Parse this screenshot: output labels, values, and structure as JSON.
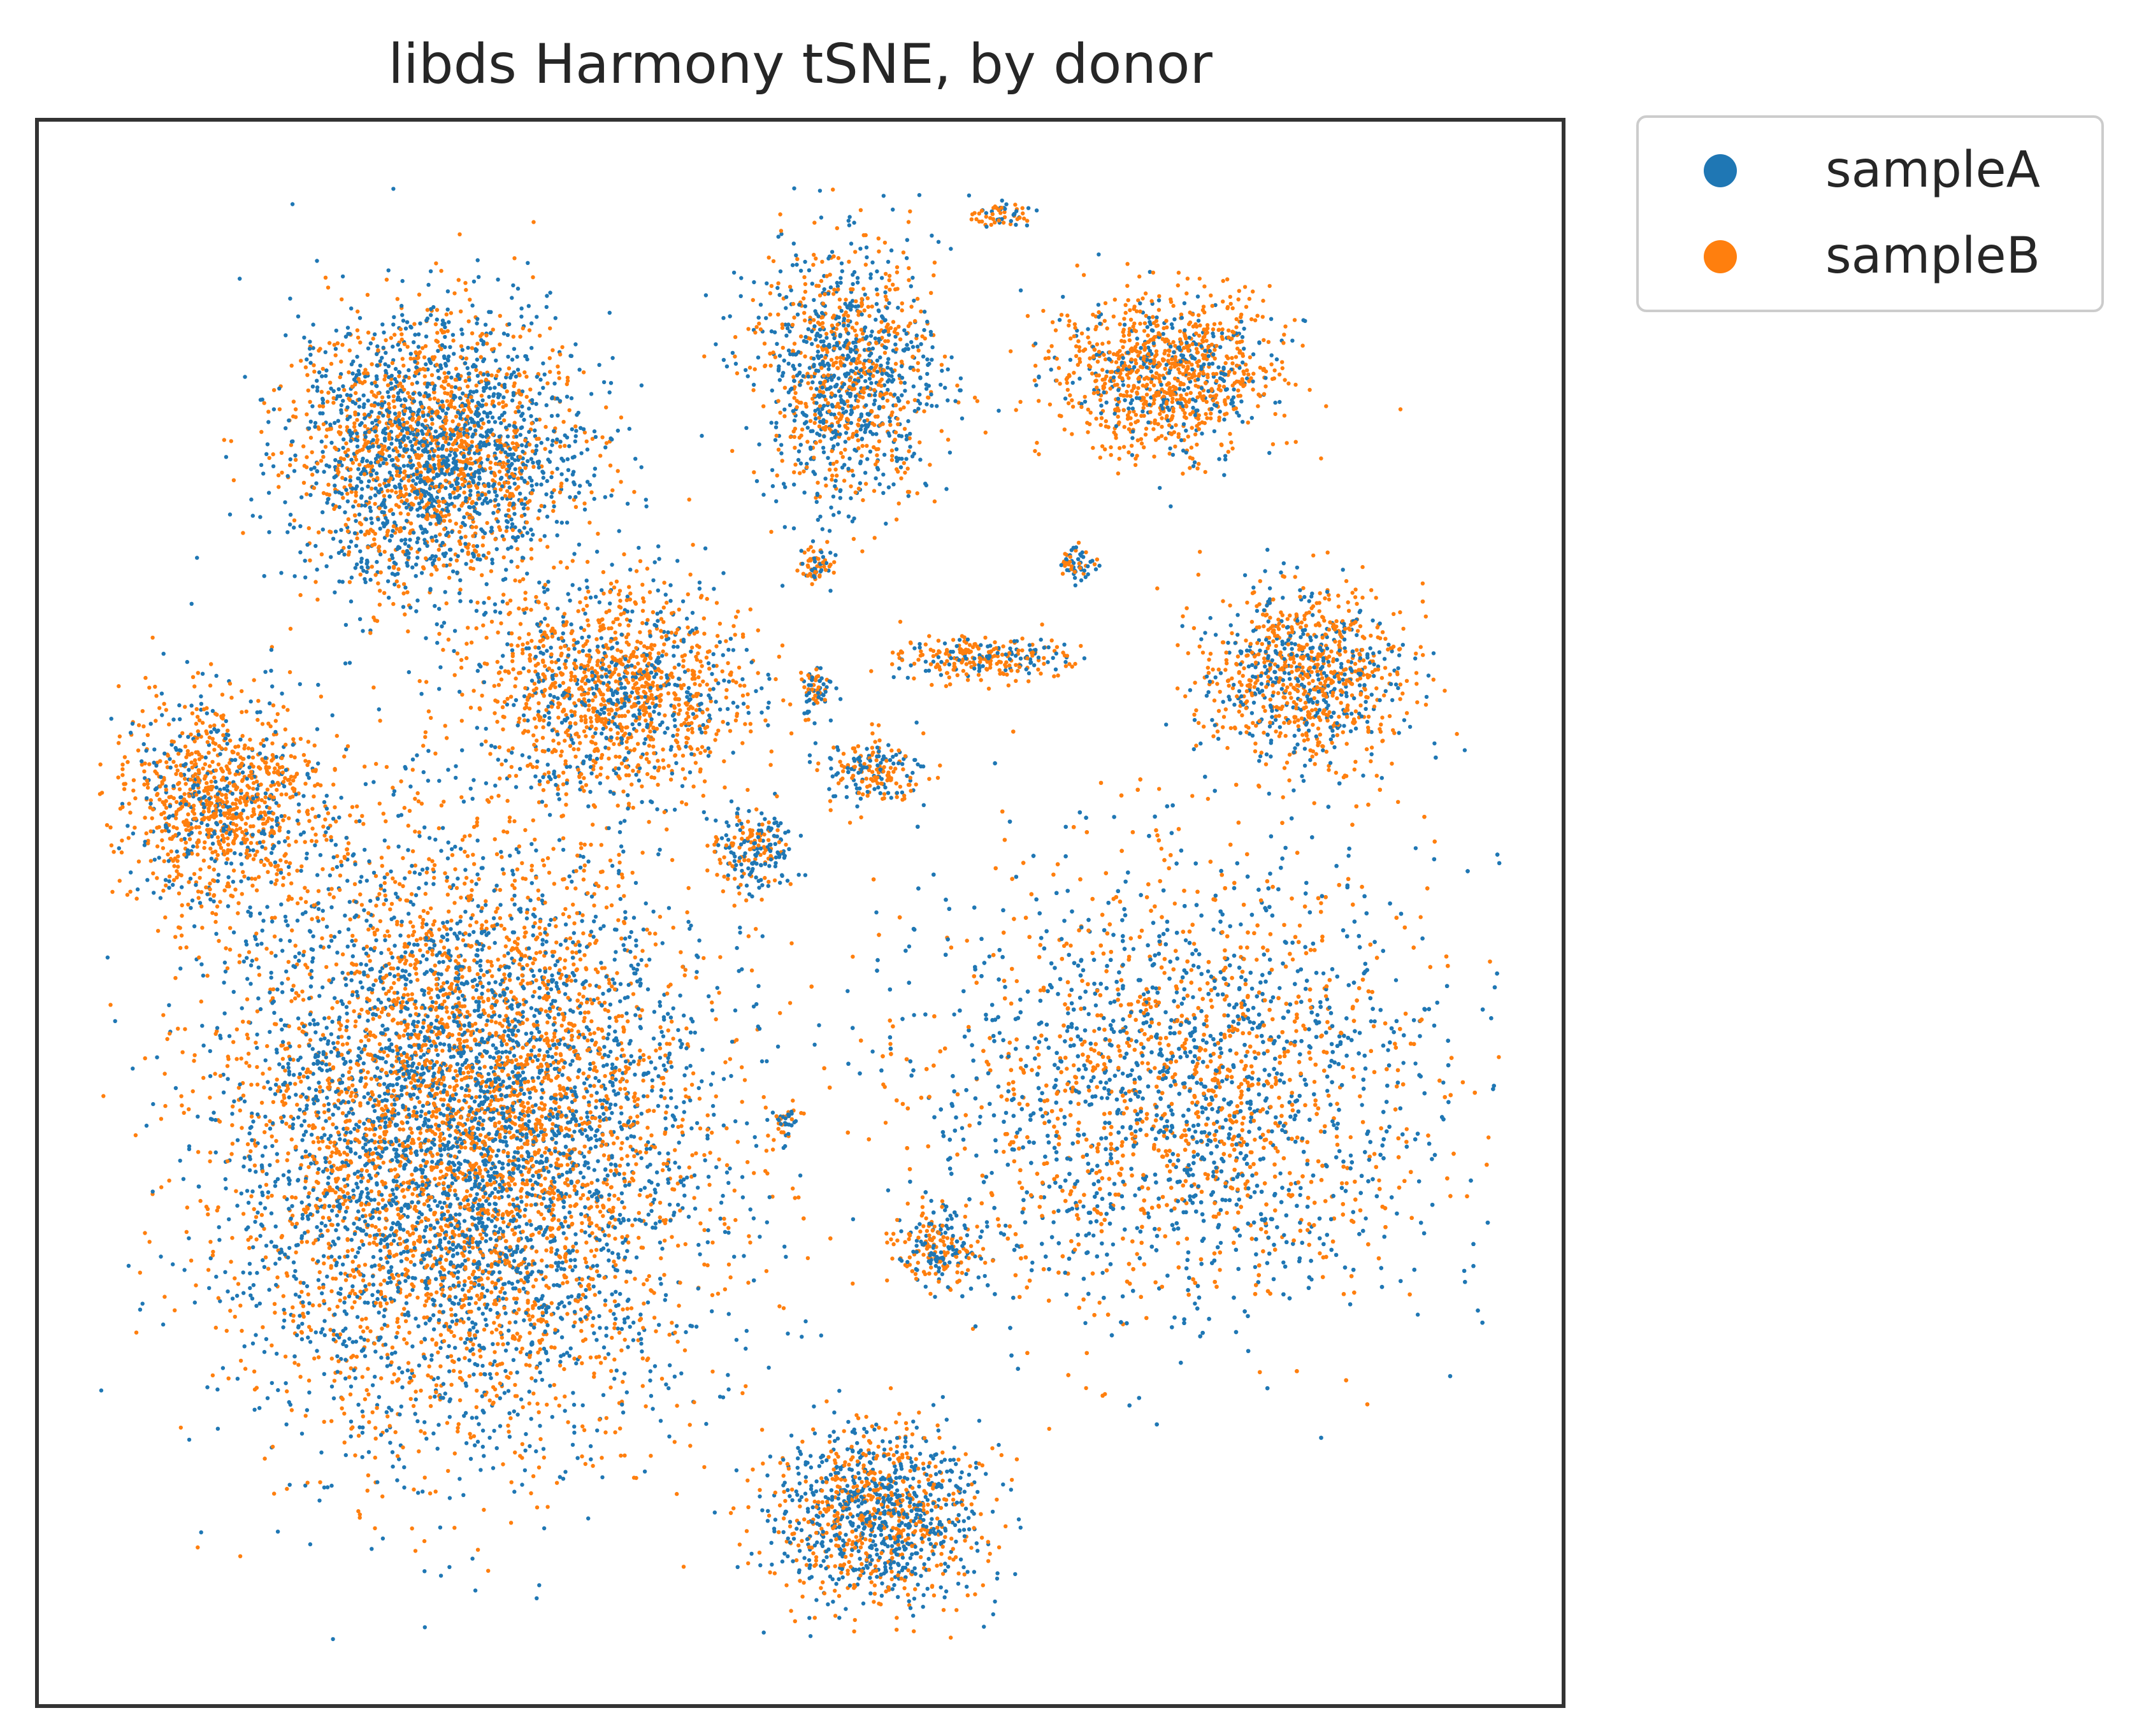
{
  "chart_data": {
    "type": "scatter",
    "title": "libds Harmony tSNE, by donor",
    "xlabel": "",
    "ylabel": "",
    "xlim": [
      0,
      100
    ],
    "ylim": [
      0,
      100
    ],
    "grid": false,
    "legend_position": "outside-top-right",
    "series": [
      {
        "name": "sampleA",
        "color": "#1f77b4"
      },
      {
        "name": "sampleB",
        "color": "#ff7f0e"
      }
    ],
    "clusters": [
      {
        "id": "top-left-large",
        "center": [
          26,
          79
        ],
        "spread": [
          8.5,
          8
        ],
        "n": 2600,
        "frac_A": 0.55
      },
      {
        "id": "top-middle",
        "center": [
          53,
          84
        ],
        "spread": [
          5.5,
          7.5
        ],
        "n": 1200,
        "frac_A": 0.55
      },
      {
        "id": "top-tiny",
        "center": [
          63,
          94
        ],
        "spread": [
          1.5,
          0.7
        ],
        "n": 60,
        "frac_A": 0.5
      },
      {
        "id": "top-right",
        "center": [
          74,
          84
        ],
        "spread": [
          6.5,
          4.5
        ],
        "n": 1100,
        "frac_A": 0.25
      },
      {
        "id": "tiny-1",
        "center": [
          51,
          72
        ],
        "spread": [
          1.0,
          1.0
        ],
        "n": 60,
        "frac_A": 0.5
      },
      {
        "id": "tiny-2",
        "center": [
          51,
          64
        ],
        "spread": [
          1.0,
          1.4
        ],
        "n": 70,
        "frac_A": 0.5
      },
      {
        "id": "tiny-3",
        "center": [
          68,
          72
        ],
        "spread": [
          1.0,
          1.0
        ],
        "n": 60,
        "frac_A": 0.5
      },
      {
        "id": "diagonal-streak",
        "center": [
          62,
          66
        ],
        "spread": [
          5.0,
          1.2
        ],
        "n": 260,
        "frac_A": 0.35
      },
      {
        "id": "mid-left",
        "center": [
          38,
          64
        ],
        "spread": [
          8,
          6
        ],
        "n": 1400,
        "frac_A": 0.3
      },
      {
        "id": "left-edge",
        "center": [
          12,
          57
        ],
        "spread": [
          6,
          6
        ],
        "n": 1100,
        "frac_A": 0.3
      },
      {
        "id": "right-upper",
        "center": [
          83,
          65
        ],
        "spread": [
          6,
          5
        ],
        "n": 1000,
        "frac_A": 0.4
      },
      {
        "id": "small-mid",
        "center": [
          47,
          54
        ],
        "spread": [
          2.2,
          2.2
        ],
        "n": 200,
        "frac_A": 0.5
      },
      {
        "id": "small-mid2",
        "center": [
          55,
          59
        ],
        "spread": [
          3,
          2
        ],
        "n": 200,
        "frac_A": 0.45
      },
      {
        "id": "bottom-left-large",
        "center": [
          28,
          36
        ],
        "spread": [
          14,
          17
        ],
        "n": 7000,
        "frac_A": 0.5
      },
      {
        "id": "bottom-mid",
        "center": [
          55,
          12
        ],
        "spread": [
          6,
          5
        ],
        "n": 1200,
        "frac_A": 0.55
      },
      {
        "id": "right-large",
        "center": [
          75,
          39
        ],
        "spread": [
          15,
          13
        ],
        "n": 7200,
        "frac_A": 0.55
      },
      {
        "id": "small-bottom",
        "center": [
          59,
          29
        ],
        "spread": [
          2.5,
          2
        ],
        "n": 200,
        "frac_A": 0.5
      },
      {
        "id": "small-tiny4",
        "center": [
          49,
          37
        ],
        "spread": [
          0.9,
          0.9
        ],
        "n": 40,
        "frac_A": 0.5
      }
    ]
  }
}
